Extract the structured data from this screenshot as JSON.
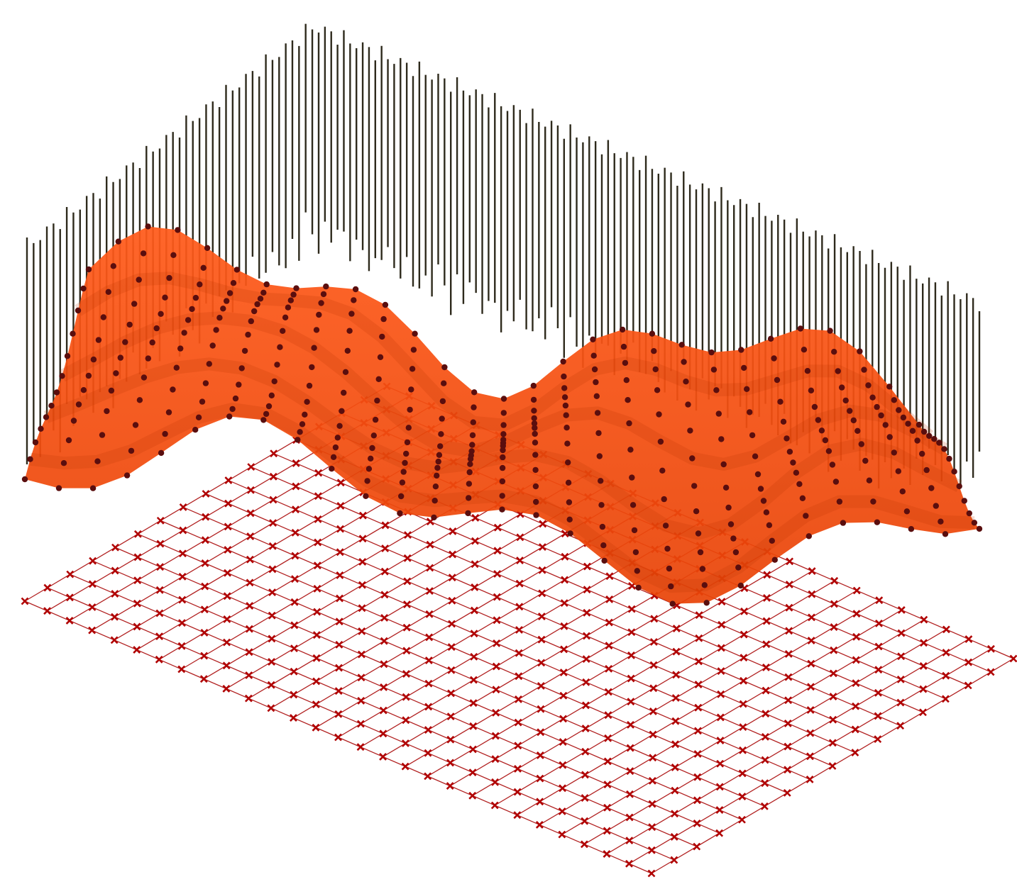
{
  "scene": {
    "colors": {
      "background": "#ffffff",
      "surface_light": "#ff5a1a",
      "surface_mid": "#f04a0a",
      "surface_dark": "#b83000",
      "sample_point": "#5a0e0e",
      "stick": "#2e2a1c",
      "grid_line": "#b22222",
      "grid_marker": "#b00000"
    },
    "icons": {
      "grid_marker": "x-mark",
      "sample_point": "dot"
    },
    "grid": {
      "rows": 16,
      "cols": 28
    },
    "surface": {
      "rows": 12,
      "cols": 28
    }
  }
}
